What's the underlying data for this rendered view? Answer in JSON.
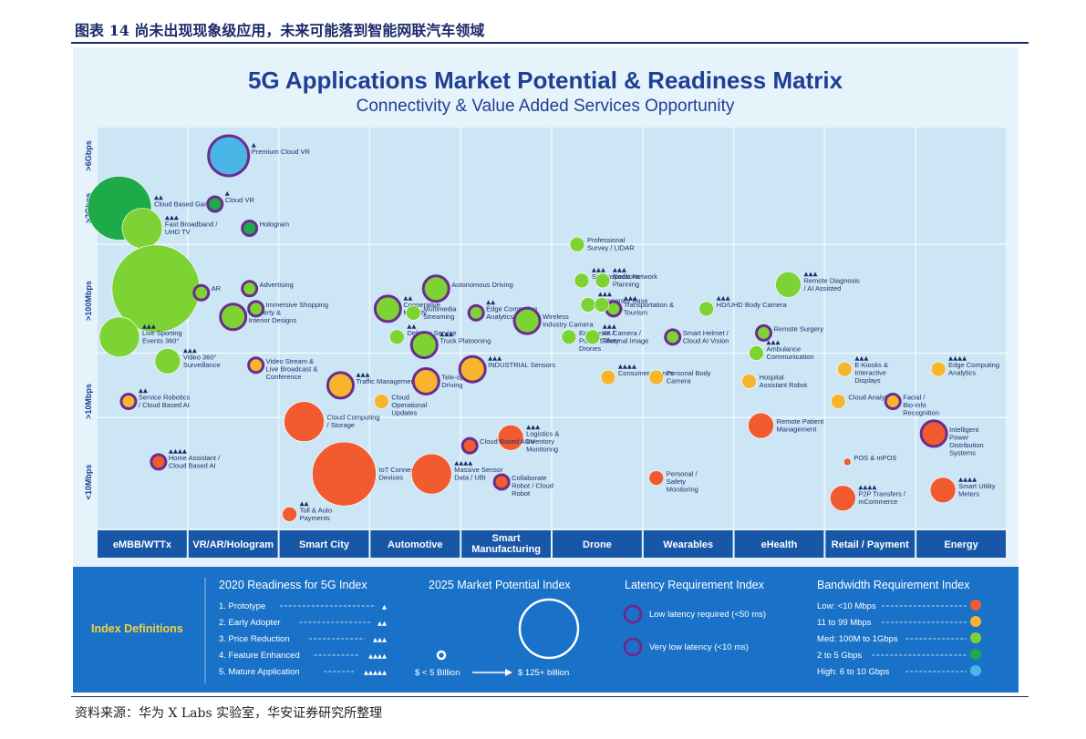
{
  "page": {
    "caption": "图表 14 尚未出现现象级应用，未来可能落到智能网联汽车领域",
    "source": "资料来源：华为 X Labs 实验室，华安证券研究所整理"
  },
  "chart_data": {
    "type": "scatter",
    "title": "5G Applications Market Potential & Readiness Matrix",
    "subtitle": "Connectivity & Value Added Services Opportunity",
    "y_axis": {
      "label_scale": "bandwidth",
      "ticks": [
        ">6Gbps",
        ">2Gbps",
        ">100Mbps",
        ">10Mbps",
        "<10Mbps"
      ]
    },
    "colors": {
      "low": "#f25a2f",
      "mid_low": "#f6b52c",
      "med": "#7dd234",
      "high_mid": "#1faa4a",
      "high": "#49b6e6",
      "ring_low_latency": "#6a2c8f",
      "ring_very_low_latency": "#6a2c8f",
      "category_bar": "#1856a8",
      "legend_bg": "#1a72c8",
      "plot_bg": "#cde6f5"
    },
    "categories": [
      "eMBB/WTTx",
      "VR/AR/Hologram",
      "Smart City",
      "Automotive",
      "Smart Manufacturing",
      "Drone",
      "Wearables",
      "eHealth",
      "Retail / Payment",
      "Energy"
    ],
    "points": [
      {
        "category": 0,
        "name": "Cloud Based Gaming",
        "readiness": 2,
        "potential": 4,
        "bandwidth": "2 to 5 Gbps",
        "latency": "none",
        "c": 0.25,
        "y": 0.2
      },
      {
        "category": 0,
        "name": "Fast Broadband / UHD TV",
        "readiness": 3,
        "potential": 3,
        "bandwidth": "Med: 100M to 1Gbps",
        "latency": "none",
        "c": 0.5,
        "y": 0.25
      },
      {
        "category": 0,
        "name": "",
        "readiness": 0,
        "potential": 5,
        "bandwidth": "Med: 100M to 1Gbps",
        "latency": "none",
        "c": 0.65,
        "y": 0.4
      },
      {
        "category": 0,
        "name": "Live Sporting Events 360°",
        "readiness": 3,
        "potential": 3,
        "bandwidth": "Med: 100M to 1Gbps",
        "latency": "none",
        "c": 0.25,
        "y": 0.52
      },
      {
        "category": 0,
        "name": "Video 360° Surveillance",
        "readiness": 3,
        "potential": 2,
        "bandwidth": "Med: 100M to 1Gbps",
        "latency": "none",
        "c": 0.78,
        "y": 0.58
      },
      {
        "category": 0,
        "name": "Service Robotics / Cloud Based AI",
        "readiness": 2,
        "potential": 1,
        "bandwidth": "11 to 99 Mbps",
        "latency": "low",
        "c": 0.35,
        "y": 0.68
      },
      {
        "category": 0,
        "name": "Home Assistant / Cloud Based AI",
        "readiness": 4,
        "potential": 1,
        "bandwidth": "Low: <10 Mbps",
        "latency": "low",
        "c": 0.68,
        "y": 0.83
      },
      {
        "category": 1,
        "name": "Premium Cloud VR",
        "readiness": 1,
        "potential": 3,
        "bandwidth": "High: 6 to 10 Gbps",
        "latency": "low",
        "c": 0.45,
        "y": 0.07
      },
      {
        "category": 1,
        "name": "Cloud VR",
        "readiness": 1,
        "potential": 1,
        "bandwidth": "2 to 5 Gbps",
        "latency": "low",
        "c": 0.3,
        "y": 0.19
      },
      {
        "category": 1,
        "name": "Hologram",
        "readiness": 0,
        "potential": 1,
        "bandwidth": "2 to 5 Gbps",
        "latency": "low",
        "c": 0.68,
        "y": 0.25
      },
      {
        "category": 1,
        "name": "AR",
        "readiness": 0,
        "potential": 1,
        "bandwidth": "Med: 100M to 1Gbps",
        "latency": "low",
        "c": 0.15,
        "y": 0.41
      },
      {
        "category": 1,
        "name": "Advertising",
        "readiness": 0,
        "potential": 1,
        "bandwidth": "Med: 100M to 1Gbps",
        "latency": "low",
        "c": 0.68,
        "y": 0.4
      },
      {
        "category": 1,
        "name": "Property & Interior Designs",
        "readiness": 0,
        "potential": 2,
        "bandwidth": "Med: 100M to 1Gbps",
        "latency": "low",
        "c": 0.5,
        "y": 0.47
      },
      {
        "category": 1,
        "name": "Immersive Shopping",
        "readiness": 0,
        "potential": 1,
        "bandwidth": "Med: 100M to 1Gbps",
        "latency": "low",
        "c": 0.75,
        "y": 0.45
      },
      {
        "category": 1,
        "name": "Video Stream & Live Broadcast & Conference",
        "readiness": 0,
        "potential": 1,
        "bandwidth": "11 to 99 Mbps",
        "latency": "low",
        "c": 0.75,
        "y": 0.59
      },
      {
        "category": 2,
        "name": "Traffic Management",
        "readiness": 3,
        "potential": 2,
        "bandwidth": "11 to 99 Mbps",
        "latency": "low",
        "c": 0.68,
        "y": 0.64
      },
      {
        "category": 2,
        "name": "Cloud Computing / Storage",
        "readiness": 0,
        "potential": 3,
        "bandwidth": "Low: <10 Mbps",
        "latency": "none",
        "c": 0.28,
        "y": 0.73
      },
      {
        "category": 2,
        "name": "IoT Connected Devices",
        "readiness": 0,
        "potential": 4,
        "bandwidth": "Low: <10 Mbps",
        "latency": "none",
        "c": 0.72,
        "y": 0.86
      },
      {
        "category": 2,
        "name": "Toll & Auto Payments",
        "readiness": 2,
        "potential": 1,
        "bandwidth": "Low: <10 Mbps",
        "latency": "none",
        "c": 0.12,
        "y": 0.96
      },
      {
        "category": 3,
        "name": "Autonomous Driving",
        "readiness": 0,
        "potential": 2,
        "bandwidth": "Med: 100M to 1Gbps",
        "latency": "very-low",
        "c": 0.73,
        "y": 0.4
      },
      {
        "category": 3,
        "name": "Cooperative Mobility",
        "readiness": 2,
        "potential": 2,
        "bandwidth": "Med: 100M to 1Gbps",
        "latency": "very-low",
        "c": 0.2,
        "y": 0.45
      },
      {
        "category": 3,
        "name": "Multimedia Streaming",
        "readiness": 0,
        "potential": 1,
        "bandwidth": "Med: 100M to 1Gbps",
        "latency": "none",
        "c": 0.48,
        "y": 0.46
      },
      {
        "category": 3,
        "name": "Delivery Service",
        "readiness": 2,
        "potential": 1,
        "bandwidth": "Med: 100M to 1Gbps",
        "latency": "none",
        "c": 0.3,
        "y": 0.52
      },
      {
        "category": 3,
        "name": "Truck Platooning",
        "readiness": 3,
        "potential": 2,
        "bandwidth": "Med: 100M to 1Gbps",
        "latency": "very-low",
        "c": 0.6,
        "y": 0.54
      },
      {
        "category": 3,
        "name": "Tele-operated Driving",
        "readiness": 0,
        "potential": 2,
        "bandwidth": "11 to 99 Mbps",
        "latency": "very-low",
        "c": 0.62,
        "y": 0.63
      },
      {
        "category": 3,
        "name": "Cloud Operational Updates",
        "readiness": 0,
        "potential": 1,
        "bandwidth": "11 to 99 Mbps",
        "latency": "none",
        "c": 0.13,
        "y": 0.68
      },
      {
        "category": 3,
        "name": "Massive Sensor Data / UBI",
        "readiness": 4,
        "potential": 3,
        "bandwidth": "Low: <10 Mbps",
        "latency": "none",
        "c": 0.68,
        "y": 0.86
      },
      {
        "category": 4,
        "name": "Edge Computing Analytics",
        "readiness": 2,
        "potential": 1,
        "bandwidth": "Med: 100M to 1Gbps",
        "latency": "low",
        "c": 0.17,
        "y": 0.46
      },
      {
        "category": 4,
        "name": "Wireless Industry Camera",
        "readiness": 0,
        "potential": 2,
        "bandwidth": "Med: 100M to 1Gbps",
        "latency": "low",
        "c": 0.73,
        "y": 0.48
      },
      {
        "category": 4,
        "name": "INDUSTRIAL Sensors",
        "readiness": 3,
        "potential": 2,
        "bandwidth": "11 to 99 Mbps",
        "latency": "low",
        "c": 0.13,
        "y": 0.6
      },
      {
        "category": 4,
        "name": "Logistics & Inventory Monitoring",
        "readiness": 3,
        "potential": 2,
        "bandwidth": "Low: <10 Mbps",
        "latency": "none",
        "c": 0.55,
        "y": 0.77
      },
      {
        "category": 4,
        "name": "Cloud Based AGV",
        "readiness": 0,
        "potential": 1,
        "bandwidth": "Low: <10 Mbps",
        "latency": "low",
        "c": 0.1,
        "y": 0.79
      },
      {
        "category": 4,
        "name": "Collaborate Robot / Cloud Robot",
        "readiness": 0,
        "potential": 1,
        "bandwidth": "Low: <10 Mbps",
        "latency": "very-low",
        "c": 0.45,
        "y": 0.88
      },
      {
        "category": 5,
        "name": "Professional Survey / LIDAR",
        "readiness": 0,
        "potential": 1,
        "bandwidth": "Med: 100M to 1Gbps",
        "latency": "none",
        "c": 0.28,
        "y": 0.29
      },
      {
        "category": 5,
        "name": "Site Inspections",
        "readiness": 3,
        "potential": 1,
        "bandwidth": "Med: 100M to 1Gbps",
        "latency": "none",
        "c": 0.33,
        "y": 0.38
      },
      {
        "category": 5,
        "name": "Radio Network Planning",
        "readiness": 3,
        "potential": 1,
        "bandwidth": "Med: 100M to 1Gbps",
        "latency": "none",
        "c": 0.56,
        "y": 0.38
      },
      {
        "category": 5,
        "name": "Temporary Base Stations",
        "readiness": 3,
        "potential": 1,
        "bandwidth": "Med: 100M to 1Gbps",
        "latency": "none",
        "c": 0.4,
        "y": 0.44
      },
      {
        "category": 5,
        "name": "Transportation & Tourism",
        "readiness": 3,
        "potential": 1,
        "bandwidth": "Med: 100M to 1Gbps",
        "latency": "low",
        "c": 0.68,
        "y": 0.45
      },
      {
        "category": 5,
        "name": "",
        "readiness": 0,
        "potential": 1,
        "bandwidth": "Med: 100M to 1Gbps",
        "latency": "none",
        "c": 0.55,
        "y": 0.44
      },
      {
        "category": 5,
        "name": "Enterprise / Public Safety Drones",
        "readiness": 0,
        "potential": 1,
        "bandwidth": "Med: 100M to 1Gbps",
        "latency": "none",
        "c": 0.19,
        "y": 0.52
      },
      {
        "category": 5,
        "name": "4K Camera / Thermal Image",
        "readiness": 3,
        "potential": 1,
        "bandwidth": "Med: 100M to 1Gbps",
        "latency": "none",
        "c": 0.45,
        "y": 0.52
      },
      {
        "category": 5,
        "name": "Consumer Drones",
        "readiness": 4,
        "potential": 1,
        "bandwidth": "11 to 99 Mbps",
        "latency": "none",
        "c": 0.62,
        "y": 0.62
      },
      {
        "category": 6,
        "name": "HD/UHD Body Camera",
        "readiness": 3,
        "potential": 1,
        "bandwidth": "Med: 100M to 1Gbps",
        "latency": "none",
        "c": 0.7,
        "y": 0.45
      },
      {
        "category": 6,
        "name": "Smart Helmet / Cloud AI Vision",
        "readiness": 0,
        "potential": 1,
        "bandwidth": "Med: 100M to 1Gbps",
        "latency": "low",
        "c": 0.33,
        "y": 0.52
      },
      {
        "category": 6,
        "name": "Personal Body Camera",
        "readiness": 0,
        "potential": 1,
        "bandwidth": "11 to 99 Mbps",
        "latency": "none",
        "c": 0.15,
        "y": 0.62
      },
      {
        "category": 6,
        "name": "Personal / Safety Monitoring",
        "readiness": 0,
        "potential": 1,
        "bandwidth": "Low: <10 Mbps",
        "latency": "none",
        "c": 0.15,
        "y": 0.87
      },
      {
        "category": 7,
        "name": "Remote Diagnosis / AI Assisted",
        "readiness": 3,
        "potential": 2,
        "bandwidth": "Med: 100M to 1Gbps",
        "latency": "none",
        "c": 0.6,
        "y": 0.39
      },
      {
        "category": 7,
        "name": "Remote Surgery",
        "readiness": 0,
        "potential": 1,
        "bandwidth": "Med: 100M to 1Gbps",
        "latency": "very-low",
        "c": 0.33,
        "y": 0.51
      },
      {
        "category": 7,
        "name": "Ambulance Communication",
        "readiness": 3,
        "potential": 1,
        "bandwidth": "Med: 100M to 1Gbps",
        "latency": "none",
        "c": 0.25,
        "y": 0.56
      },
      {
        "category": 7,
        "name": "Hospital Assistant Robot",
        "readiness": 0,
        "potential": 1,
        "bandwidth": "11 to 99 Mbps",
        "latency": "none",
        "c": 0.17,
        "y": 0.63
      },
      {
        "category": 7,
        "name": "Remote Patient Management",
        "readiness": 0,
        "potential": 2,
        "bandwidth": "Low: <10 Mbps",
        "latency": "none",
        "c": 0.3,
        "y": 0.74
      },
      {
        "category": 8,
        "name": "E-Kiosks & Interactive Displays",
        "readiness": 3,
        "potential": 1,
        "bandwidth": "11 to 99 Mbps",
        "latency": "none",
        "c": 0.22,
        "y": 0.6
      },
      {
        "category": 8,
        "name": "Cloud Analytics",
        "readiness": 0,
        "potential": 1,
        "bandwidth": "11 to 99 Mbps",
        "latency": "none",
        "c": 0.15,
        "y": 0.68
      },
      {
        "category": 8,
        "name": "Facial / Bio-info Recognition",
        "readiness": 0,
        "potential": 1,
        "bandwidth": "11 to 99 Mbps",
        "latency": "low",
        "c": 0.75,
        "y": 0.68
      },
      {
        "category": 8,
        "name": "POS & mPOS",
        "readiness": 0,
        "potential": 0,
        "bandwidth": "Low: <10 Mbps",
        "latency": "none",
        "c": 0.25,
        "y": 0.83
      },
      {
        "category": 8,
        "name": "P2P Transfers / mCommerce",
        "readiness": 4,
        "potential": 2,
        "bandwidth": "Low: <10 Mbps",
        "latency": "none",
        "c": 0.2,
        "y": 0.92
      },
      {
        "category": 9,
        "name": "Edge Computing Analytics",
        "readiness": 4,
        "potential": 1,
        "bandwidth": "11 to 99 Mbps",
        "latency": "none",
        "c": 0.25,
        "y": 0.6
      },
      {
        "category": 9,
        "name": "Intelligent Power Distribution Systems",
        "readiness": 0,
        "potential": 2,
        "bandwidth": "Low: <10 Mbps",
        "latency": "very-low",
        "c": 0.2,
        "y": 0.76
      },
      {
        "category": 9,
        "name": "Smart Utility Meters",
        "readiness": 4,
        "potential": 2,
        "bandwidth": "Low: <10 Mbps",
        "latency": "none",
        "c": 0.3,
        "y": 0.9
      }
    ],
    "legend": {
      "heading": "Index Definitions",
      "readiness": {
        "title": "2020 Readiness for 5G Index",
        "items": [
          "1. Prototype",
          "2. Early Adopter",
          "3. Price Reduction",
          "4. Feature Enhanced",
          "5. Mature Application"
        ]
      },
      "potential": {
        "title": "2025 Market Potential Index",
        "min_label": "$ < 5 Billion",
        "max_label": "$ 125+ billion"
      },
      "latency": {
        "title": "Latency Requirement Index",
        "items": [
          "Low latency required (<50 ms)",
          "Very low latency (<10 ms)"
        ]
      },
      "bandwidth": {
        "title": "Bandwidth Requirement Index",
        "items": [
          "Low: <10 Mbps",
          "11 to 99 Mbps",
          "Med: 100M to 1Gbps",
          "2 to 5 Gbps",
          "High: 6 to 10 Gbps"
        ]
      }
    }
  }
}
